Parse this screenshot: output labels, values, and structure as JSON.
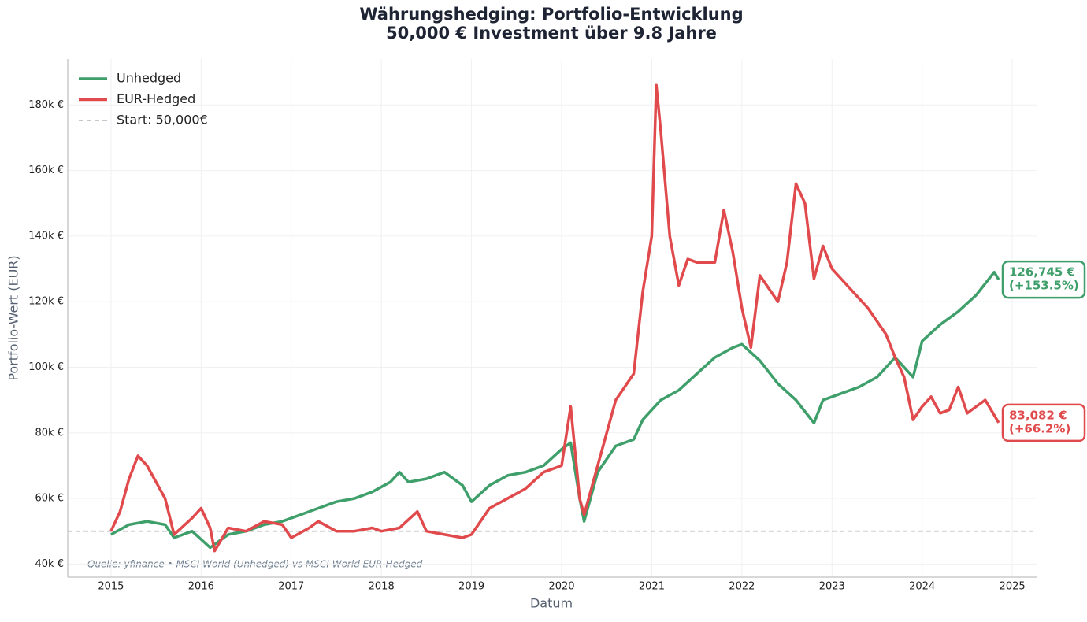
{
  "chart_data": {
    "type": "line",
    "title": [
      "Währungshedging: Portfolio-Entwicklung",
      "50,000 € Investment über 9.8 Jahre"
    ],
    "x_label": "Datum",
    "y_label": "Portfolio-Wert (EUR)",
    "source": "Quelle: yfinance • MSCI World (Unhedged) vs MSCI World EUR-Hedged",
    "xlim": [
      2014.52,
      2025.27
    ],
    "xticks": [
      2015,
      2016,
      2017,
      2018,
      2019,
      2020,
      2021,
      2022,
      2023,
      2024,
      2025
    ],
    "ylim": [
      36000,
      194000
    ],
    "yticks": [
      {
        "value": 40000,
        "label": "40k €"
      },
      {
        "value": 60000,
        "label": "60k €"
      },
      {
        "value": 80000,
        "label": "80k €"
      },
      {
        "value": 100000,
        "label": "100k €"
      },
      {
        "value": 120000,
        "label": "120k €"
      },
      {
        "value": 140000,
        "label": "140k €"
      },
      {
        "value": 160000,
        "label": "160k €"
      },
      {
        "value": 180000,
        "label": "180k €"
      }
    ],
    "grid": true,
    "legend": "upper left",
    "hline": {
      "name": "Start: 50,000€",
      "value": 50000,
      "color": "#b4b4bb"
    },
    "series": [
      {
        "name": "Unhedged",
        "color": "#3f9f6b",
        "end_label": [
          "126,745 €",
          "(+153.5%)"
        ],
        "x": [
          2015.0,
          2015.2,
          2015.4,
          2015.6,
          2015.7,
          2015.9,
          2016.1,
          2016.3,
          2016.5,
          2016.7,
          2016.9,
          2017.1,
          2017.3,
          2017.5,
          2017.7,
          2017.9,
          2018.1,
          2018.2,
          2018.3,
          2018.5,
          2018.7,
          2018.9,
          2019.0,
          2019.2,
          2019.4,
          2019.6,
          2019.8,
          2020.0,
          2020.1,
          2020.2,
          2020.25,
          2020.4,
          2020.6,
          2020.8,
          2020.9,
          2021.1,
          2021.3,
          2021.5,
          2021.7,
          2021.9,
          2022.0,
          2022.2,
          2022.4,
          2022.6,
          2022.8,
          2022.9,
          2023.1,
          2023.3,
          2023.5,
          2023.7,
          2023.9,
          2024.0,
          2024.2,
          2024.4,
          2024.6,
          2024.8,
          2024.85
        ],
        "values": [
          49000,
          52000,
          53000,
          52000,
          48000,
          50000,
          45000,
          49000,
          50000,
          52000,
          53000,
          55000,
          57000,
          59000,
          60000,
          62000,
          65000,
          68000,
          65000,
          66000,
          68000,
          64000,
          59000,
          64000,
          67000,
          68000,
          70000,
          75000,
          77000,
          60000,
          53000,
          68000,
          76000,
          78000,
          84000,
          90000,
          93000,
          98000,
          103000,
          106000,
          107000,
          102000,
          95000,
          90000,
          83000,
          90000,
          92000,
          94000,
          97000,
          103000,
          97000,
          108000,
          113000,
          117000,
          122000,
          129000,
          126745
        ]
      },
      {
        "name": "EUR-Hedged",
        "color": "#e04a4c",
        "end_label": [
          "83,082 €",
          "(+66.2%)"
        ],
        "x": [
          2015.0,
          2015.1,
          2015.2,
          2015.3,
          2015.4,
          2015.5,
          2015.6,
          2015.7,
          2015.9,
          2016.0,
          2016.1,
          2016.15,
          2016.3,
          2016.5,
          2016.7,
          2016.9,
          2017.0,
          2017.2,
          2017.3,
          2017.5,
          2017.7,
          2017.9,
          2018.0,
          2018.2,
          2018.4,
          2018.5,
          2018.7,
          2018.9,
          2019.0,
          2019.2,
          2019.4,
          2019.6,
          2019.8,
          2020.0,
          2020.1,
          2020.2,
          2020.25,
          2020.4,
          2020.6,
          2020.8,
          2020.9,
          2021.0,
          2021.05,
          2021.1,
          2021.2,
          2021.3,
          2021.4,
          2021.5,
          2021.7,
          2021.8,
          2021.9,
          2022.0,
          2022.1,
          2022.2,
          2022.4,
          2022.5,
          2022.6,
          2022.7,
          2022.8,
          2022.9,
          2023.0,
          2023.2,
          2023.4,
          2023.6,
          2023.7,
          2023.8,
          2023.9,
          2024.0,
          2024.1,
          2024.2,
          2024.3,
          2024.4,
          2024.5,
          2024.6,
          2024.7,
          2024.85
        ],
        "values": [
          50000,
          56000,
          66000,
          73000,
          70000,
          65000,
          60000,
          49000,
          54000,
          57000,
          51000,
          44000,
          51000,
          50000,
          53000,
          52000,
          48000,
          51000,
          53000,
          50000,
          50000,
          51000,
          50000,
          51000,
          56000,
          50000,
          49000,
          48000,
          49000,
          57000,
          60000,
          63000,
          68000,
          70000,
          88000,
          60000,
          55000,
          70000,
          90000,
          98000,
          123000,
          140000,
          186000,
          172000,
          140000,
          125000,
          133000,
          132000,
          132000,
          148000,
          135000,
          118000,
          106000,
          128000,
          120000,
          132000,
          156000,
          150000,
          127000,
          137000,
          130000,
          124000,
          118000,
          110000,
          103000,
          97000,
          84000,
          88000,
          91000,
          86000,
          87000,
          94000,
          86000,
          88000,
          90000,
          83082
        ]
      }
    ]
  }
}
